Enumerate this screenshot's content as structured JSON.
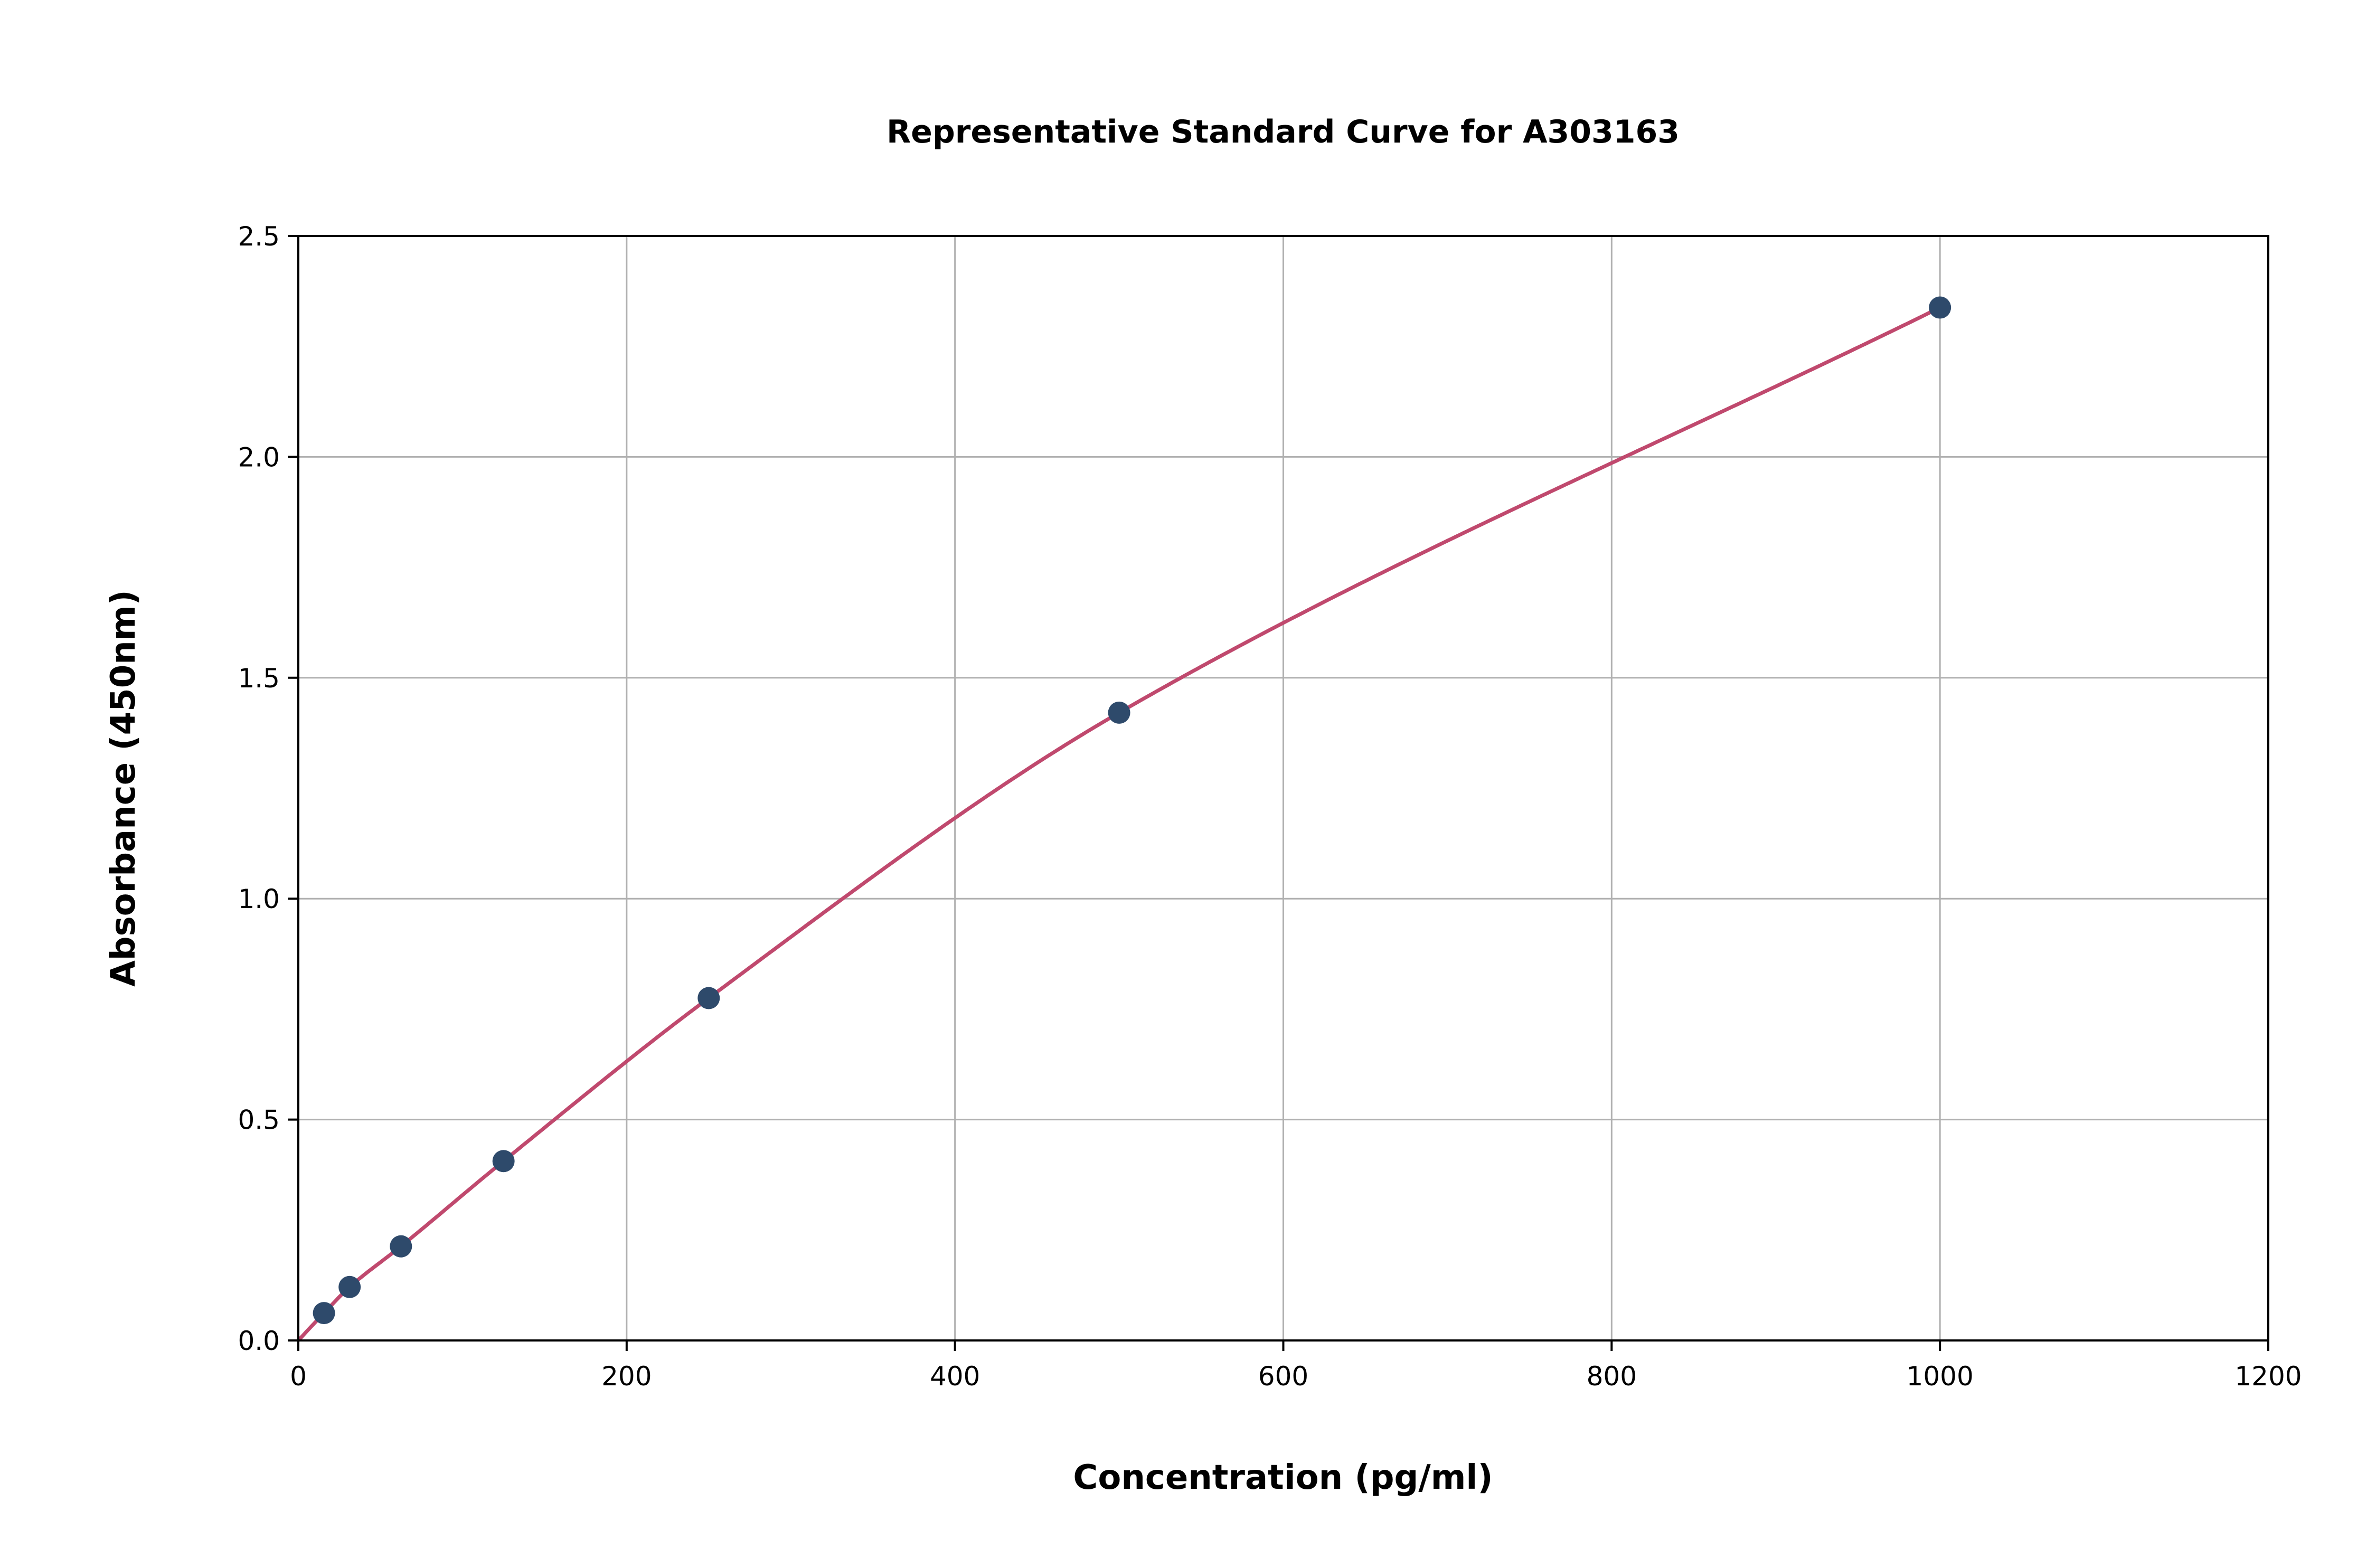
{
  "chart_data": {
    "type": "scatter",
    "title": "Representative Standard Curve for A303163",
    "xlabel": "Concentration (pg/ml)",
    "ylabel": "Absorbance (450nm)",
    "xlim": [
      0,
      1200
    ],
    "ylim": [
      0,
      2.5
    ],
    "xticks": [
      "0",
      "200",
      "400",
      "600",
      "800",
      "1000",
      "1200"
    ],
    "yticks": [
      "0.0",
      "0.5",
      "1.0",
      "1.5",
      "2.0",
      "2.5"
    ],
    "grid": true,
    "series": [
      {
        "x": [
          15.625,
          31.25,
          62.5,
          125,
          250,
          500,
          1000
        ],
        "y": [
          0.062,
          0.121,
          0.213,
          0.406,
          0.775,
          1.421,
          2.338
        ]
      }
    ],
    "fit_curve": {
      "x_range": [
        0,
        1000
      ]
    },
    "colors": {
      "points": "#2e4a6b",
      "curve": "#c0496e",
      "grid": "#b0b0b0"
    }
  }
}
